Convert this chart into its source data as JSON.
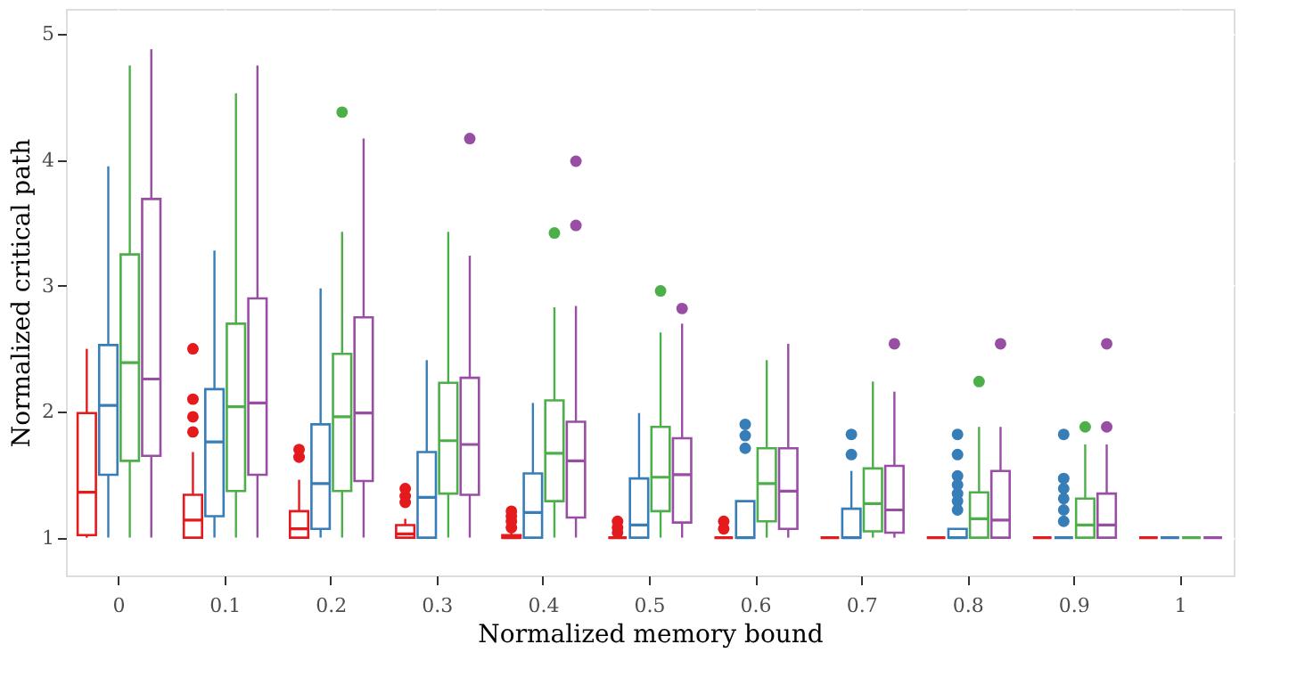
{
  "chart_data": {
    "type": "box",
    "xlabel": "Normalized memory bound",
    "ylabel": "Normalized critical path",
    "categories": [
      "0",
      "0.1",
      "0.2",
      "0.3",
      "0.4",
      "0.5",
      "0.6",
      "0.7",
      "0.8",
      "0.9",
      "1"
    ],
    "ylim": [
      0.7,
      5.2
    ],
    "yticks": [
      1,
      2,
      3,
      4,
      5
    ],
    "grid": true,
    "series": [
      {
        "color": "#e41a1c",
        "boxes": [
          {
            "low": 1.0,
            "q1": 1.02,
            "median": 1.36,
            "q3": 1.99,
            "high": 2.5
          },
          {
            "low": 1.0,
            "q1": 1.0,
            "median": 1.14,
            "q3": 1.34,
            "high": 1.68,
            "outliers": [
              1.84,
              1.96,
              2.1,
              2.5
            ]
          },
          {
            "low": 1.0,
            "q1": 1.0,
            "median": 1.07,
            "q3": 1.21,
            "high": 1.46,
            "outliers": [
              1.64,
              1.7
            ]
          },
          {
            "low": 1.0,
            "q1": 1.0,
            "median": 1.03,
            "q3": 1.1,
            "high": 1.15,
            "outliers": [
              1.28,
              1.33,
              1.39
            ]
          },
          {
            "low": 1.0,
            "q1": 1.0,
            "median": 1.0,
            "q3": 1.02,
            "high": 1.05,
            "outliers": [
              1.08,
              1.13,
              1.17,
              1.21
            ]
          },
          {
            "low": 1.0,
            "q1": 1.0,
            "median": 1.0,
            "q3": 1.0,
            "high": 1.0,
            "outliers": [
              1.04,
              1.08,
              1.13
            ]
          },
          {
            "low": 1.0,
            "q1": 1.0,
            "median": 1.0,
            "q3": 1.0,
            "high": 1.0,
            "outliers": [
              1.07,
              1.13
            ]
          },
          {
            "low": 1.0,
            "q1": 1.0,
            "median": 1.0,
            "q3": 1.0,
            "high": 1.0
          },
          {
            "low": 1.0,
            "q1": 1.0,
            "median": 1.0,
            "q3": 1.0,
            "high": 1.0
          },
          {
            "low": 1.0,
            "q1": 1.0,
            "median": 1.0,
            "q3": 1.0,
            "high": 1.0
          },
          {
            "low": 1.0,
            "q1": 1.0,
            "median": 1.0,
            "q3": 1.0,
            "high": 1.0
          }
        ]
      },
      {
        "color": "#377eb8",
        "boxes": [
          {
            "low": 1.0,
            "q1": 1.5,
            "median": 2.05,
            "q3": 2.53,
            "high": 3.95
          },
          {
            "low": 1.0,
            "q1": 1.17,
            "median": 1.76,
            "q3": 2.18,
            "high": 3.28
          },
          {
            "low": 1.0,
            "q1": 1.07,
            "median": 1.43,
            "q3": 1.9,
            "high": 2.98
          },
          {
            "low": 1.0,
            "q1": 1.0,
            "median": 1.32,
            "q3": 1.68,
            "high": 2.41
          },
          {
            "low": 1.0,
            "q1": 1.0,
            "median": 1.2,
            "q3": 1.51,
            "high": 2.07
          },
          {
            "low": 1.0,
            "q1": 1.0,
            "median": 1.1,
            "q3": 1.47,
            "high": 1.99
          },
          {
            "low": 1.0,
            "q1": 1.0,
            "median": 1.0,
            "q3": 1.29,
            "high": 1.29,
            "outliers": [
              1.71,
              1.81,
              1.9
            ]
          },
          {
            "low": 1.0,
            "q1": 1.0,
            "median": 1.0,
            "q3": 1.23,
            "high": 1.53,
            "outliers": [
              1.66,
              1.82
            ]
          },
          {
            "low": 1.0,
            "q1": 1.0,
            "median": 1.0,
            "q3": 1.07,
            "high": 1.07,
            "outliers": [
              1.22,
              1.29,
              1.35,
              1.42,
              1.49,
              1.66,
              1.82
            ]
          },
          {
            "low": 1.0,
            "q1": 1.0,
            "median": 1.0,
            "q3": 1.0,
            "high": 1.0,
            "outliers": [
              1.13,
              1.22,
              1.31,
              1.39,
              1.47,
              1.82
            ]
          },
          {
            "low": 1.0,
            "q1": 1.0,
            "median": 1.0,
            "q3": 1.0,
            "high": 1.0
          }
        ]
      },
      {
        "color": "#4daf4a",
        "boxes": [
          {
            "low": 1.0,
            "q1": 1.61,
            "median": 2.39,
            "q3": 3.25,
            "high": 4.75
          },
          {
            "low": 1.0,
            "q1": 1.37,
            "median": 2.04,
            "q3": 2.7,
            "high": 4.53
          },
          {
            "low": 1.0,
            "q1": 1.37,
            "median": 1.96,
            "q3": 2.46,
            "high": 3.43,
            "outliers": [
              4.38
            ]
          },
          {
            "low": 1.0,
            "q1": 1.35,
            "median": 1.77,
            "q3": 2.23,
            "high": 3.43
          },
          {
            "low": 1.0,
            "q1": 1.29,
            "median": 1.67,
            "q3": 2.09,
            "high": 2.83,
            "outliers": [
              3.42
            ]
          },
          {
            "low": 1.0,
            "q1": 1.21,
            "median": 1.48,
            "q3": 1.88,
            "high": 2.63,
            "outliers": [
              2.96
            ]
          },
          {
            "low": 1.0,
            "q1": 1.13,
            "median": 1.43,
            "q3": 1.71,
            "high": 2.41
          },
          {
            "low": 1.0,
            "q1": 1.05,
            "median": 1.27,
            "q3": 1.55,
            "high": 2.24
          },
          {
            "low": 1.0,
            "q1": 1.0,
            "median": 1.15,
            "q3": 1.36,
            "high": 1.88,
            "outliers": [
              2.24
            ]
          },
          {
            "low": 1.0,
            "q1": 1.0,
            "median": 1.1,
            "q3": 1.31,
            "high": 1.74,
            "outliers": [
              1.88
            ]
          },
          {
            "low": 1.0,
            "q1": 1.0,
            "median": 1.0,
            "q3": 1.0,
            "high": 1.0
          }
        ]
      },
      {
        "color": "#984ea3",
        "boxes": [
          {
            "low": 1.0,
            "q1": 1.65,
            "median": 2.26,
            "q3": 3.69,
            "high": 4.88
          },
          {
            "low": 1.0,
            "q1": 1.5,
            "median": 2.07,
            "q3": 2.9,
            "high": 4.75
          },
          {
            "low": 1.0,
            "q1": 1.45,
            "median": 1.99,
            "q3": 2.75,
            "high": 4.17
          },
          {
            "low": 1.0,
            "q1": 1.34,
            "median": 1.74,
            "q3": 2.27,
            "high": 3.24,
            "outliers": [
              4.17
            ]
          },
          {
            "low": 1.0,
            "q1": 1.16,
            "median": 1.61,
            "q3": 1.92,
            "high": 2.84,
            "outliers": [
              3.48,
              3.99
            ]
          },
          {
            "low": 1.0,
            "q1": 1.12,
            "median": 1.5,
            "q3": 1.79,
            "high": 2.7,
            "outliers": [
              2.82
            ]
          },
          {
            "low": 1.0,
            "q1": 1.07,
            "median": 1.37,
            "q3": 1.71,
            "high": 2.54
          },
          {
            "low": 1.0,
            "q1": 1.04,
            "median": 1.22,
            "q3": 1.57,
            "high": 2.16,
            "outliers": [
              2.54
            ]
          },
          {
            "low": 1.0,
            "q1": 1.0,
            "median": 1.14,
            "q3": 1.53,
            "high": 1.88,
            "outliers": [
              2.54
            ]
          },
          {
            "low": 1.0,
            "q1": 1.0,
            "median": 1.1,
            "q3": 1.35,
            "high": 1.74,
            "outliers": [
              1.88,
              2.54
            ]
          },
          {
            "low": 1.0,
            "q1": 1.0,
            "median": 1.0,
            "q3": 1.0,
            "high": 1.0
          }
        ]
      }
    ]
  }
}
